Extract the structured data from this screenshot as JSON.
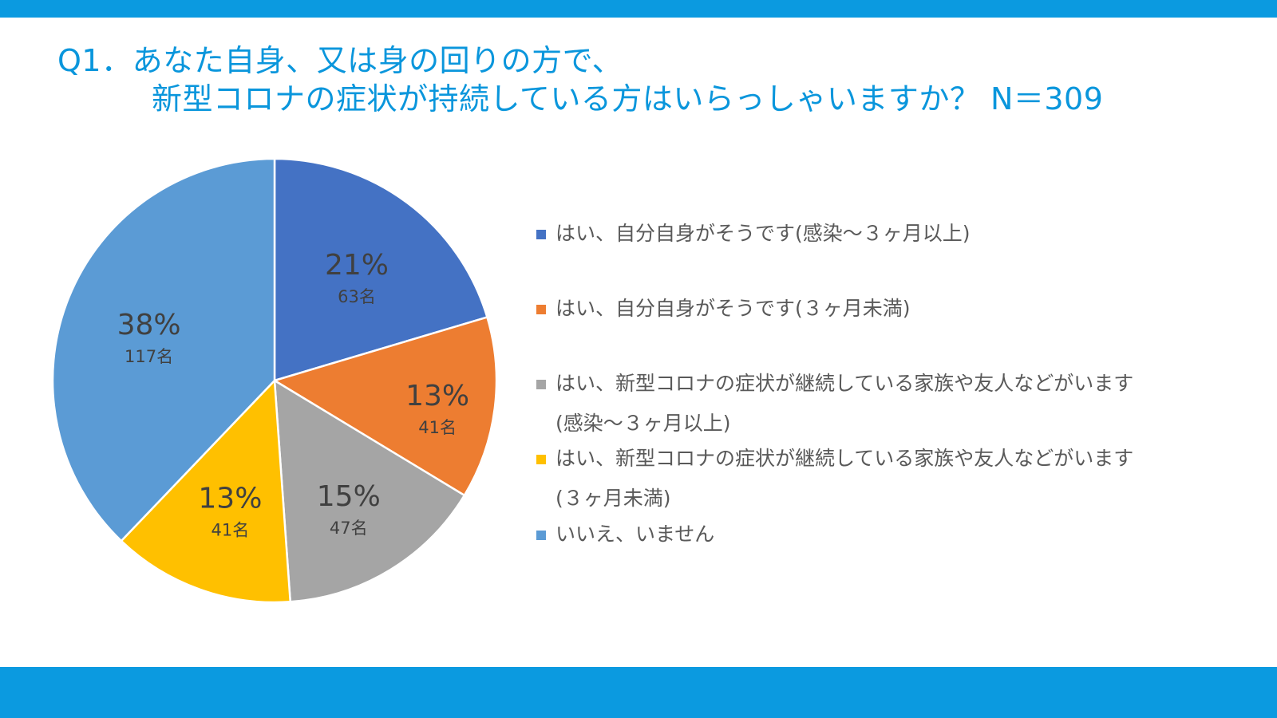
{
  "slide": {
    "title_line1": "Q1．あなた自身、又は身の回りの方で、",
    "title_line2": "新型コロナの症状が持続している方はいらっしゃいますか？ N＝309"
  },
  "chart_data": {
    "type": "pie",
    "title": "",
    "start_angle_deg": 0,
    "direction": "clockwise",
    "slices": [
      {
        "percent_label": "21%",
        "count_label": "63名",
        "value": 63,
        "color": "#4472c4",
        "legend": [
          "はい、自分自身がそうです(感染～３ヶ月以上)"
        ]
      },
      {
        "percent_label": "13%",
        "count_label": "41名",
        "value": 41,
        "color": "#ed7d31",
        "legend": [
          "はい、自分自身がそうです(３ヶ月未満)"
        ]
      },
      {
        "percent_label": "15%",
        "count_label": "47名",
        "value": 47,
        "color": "#a5a5a5",
        "legend": [
          "はい、新型コロナの症状が継続している家族や友人などがいます",
          "(感染～３ヶ月以上)"
        ]
      },
      {
        "percent_label": "13%",
        "count_label": "41名",
        "value": 41,
        "color": "#ffc000",
        "legend": [
          "はい、新型コロナの症状が継続している家族や友人などがいます",
          "(３ヶ月未満)"
        ]
      },
      {
        "percent_label": "38%",
        "count_label": "117名",
        "value": 117,
        "color": "#5b9bd5",
        "legend": [
          "いいえ、いません"
        ]
      }
    ],
    "legend_placement": "right"
  }
}
